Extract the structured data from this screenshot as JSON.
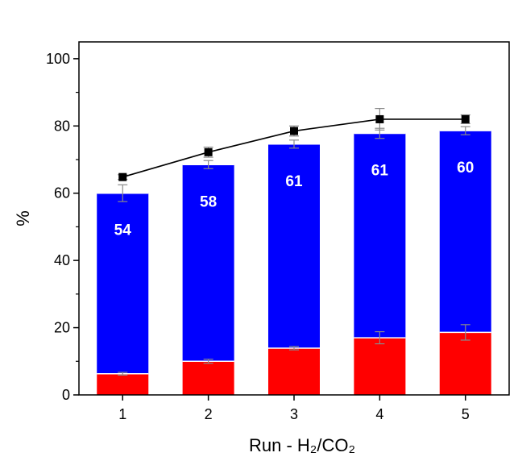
{
  "chart_data": {
    "type": "bar",
    "stacked": true,
    "xlabel": "Run - H₂/CO₂",
    "ylabel": "%",
    "ylim": [
      0,
      105
    ],
    "yticks": [
      0,
      20,
      40,
      60,
      80,
      100
    ],
    "categories": [
      "1",
      "2",
      "3",
      "4",
      "5"
    ],
    "series": [
      {
        "kind": "bar",
        "color": "#ff0000",
        "values": [
          6.3,
          10.0,
          13.9,
          17.0,
          18.6
        ],
        "errors": [
          0.4,
          0.6,
          0.5,
          1.8,
          2.3
        ]
      },
      {
        "kind": "bar",
        "color": "#0000ff",
        "values": [
          53.7,
          58.5,
          60.7,
          60.8,
          60.0
        ],
        "totals": [
          60.0,
          68.5,
          74.6,
          77.8,
          78.6
        ],
        "total_errors": [
          2.5,
          1.2,
          1.2,
          1.5,
          1.2
        ],
        "labels": [
          "54",
          "58",
          "61",
          "61",
          "60"
        ]
      },
      {
        "kind": "line",
        "marker": "square",
        "color": "#000000",
        "values": [
          64.8,
          72.2,
          78.5,
          82.0,
          82.0
        ],
        "errors": [
          0.7,
          1.5,
          1.5,
          3.2,
          1.3
        ]
      }
    ]
  }
}
